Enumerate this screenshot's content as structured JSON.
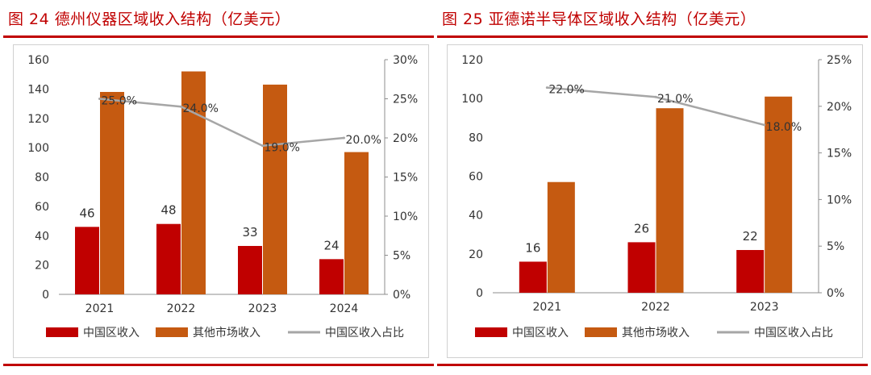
{
  "charts": [
    {
      "title": "图 24   德州仪器区域收入结构（亿美元）"
    },
    {
      "title": "图 25   亚德诺半导体区域收入结构（亿美元）"
    }
  ],
  "chart_data": [
    {
      "type": "bar",
      "title": "图 24   德州仪器区域收入结构（亿美元）",
      "categories": [
        "2021",
        "2022",
        "2023",
        "2024"
      ],
      "series": [
        {
          "name": "中国区收入",
          "axis": "left",
          "type": "bar",
          "values": [
            46,
            48,
            33,
            24
          ],
          "labels": [
            "46",
            "48",
            "33",
            "24"
          ],
          "color": "#c00000"
        },
        {
          "name": "其他市场收入",
          "axis": "left",
          "type": "bar",
          "values": [
            138,
            152,
            143,
            97
          ],
          "color": "#c55a11"
        },
        {
          "name": "中国区收入占比",
          "axis": "right",
          "type": "line",
          "values": [
            25,
            24,
            19,
            20
          ],
          "labels": [
            "25.0%",
            "24.0%",
            "19.0%",
            "20.0%"
          ],
          "color": "#a6a6a6"
        }
      ],
      "ylim": [
        0,
        160
      ],
      "yticks": [
        "0",
        "20",
        "40",
        "60",
        "80",
        "100",
        "120",
        "140",
        "160"
      ],
      "y2lim": [
        0,
        30
      ],
      "y2ticks": [
        "0%",
        "5%",
        "10%",
        "15%",
        "20%",
        "25%",
        "30%"
      ],
      "legend": "bottom"
    },
    {
      "type": "bar",
      "title": "图 25   亚德诺半导体区域收入结构（亿美元）",
      "categories": [
        "2021",
        "2022",
        "2023"
      ],
      "series": [
        {
          "name": "中国区收入",
          "axis": "left",
          "type": "bar",
          "values": [
            16,
            26,
            22
          ],
          "labels": [
            "16",
            "26",
            "22"
          ],
          "color": "#c00000"
        },
        {
          "name": "其他市场收入",
          "axis": "left",
          "type": "bar",
          "values": [
            57,
            95,
            101
          ],
          "color": "#c55a11"
        },
        {
          "name": "中国区收入占比",
          "axis": "right",
          "type": "line",
          "values": [
            22,
            21,
            18
          ],
          "labels": [
            "22.0%",
            "21.0%",
            "18.0%"
          ],
          "color": "#a6a6a6"
        }
      ],
      "ylim": [
        0,
        120
      ],
      "yticks": [
        "0",
        "20",
        "40",
        "60",
        "80",
        "100",
        "120"
      ],
      "y2lim": [
        0,
        25
      ],
      "y2ticks": [
        "0%",
        "5%",
        "10%",
        "15%",
        "20%",
        "25%"
      ],
      "legend": "bottom"
    }
  ]
}
